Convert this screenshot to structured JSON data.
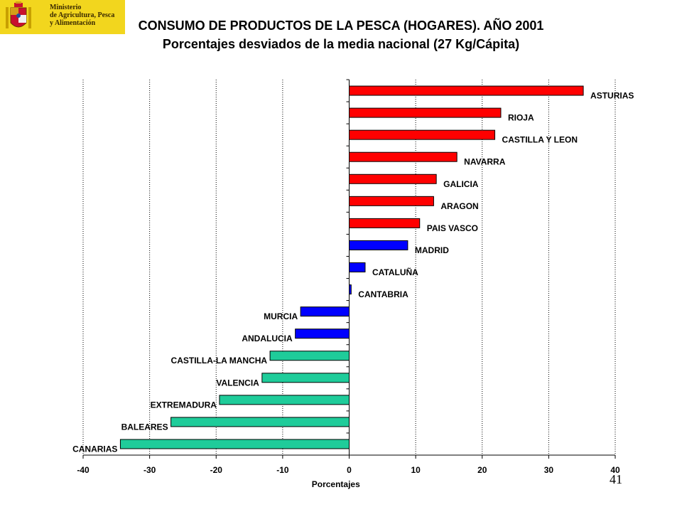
{
  "logo": {
    "lines": [
      "Ministerio",
      "de Agricultura, Pesca",
      "y Alimentación"
    ]
  },
  "page_number": "41",
  "colors": {
    "red": "#ff0000",
    "blue": "#0000ff",
    "green": "#1fcc9a"
  },
  "chart_data": {
    "type": "bar",
    "orientation": "horizontal",
    "title": "CONSUMO DE PRODUCTOS DE LA PESCA (HOGARES). AÑO 2001",
    "subtitle": "Porcentajes desviados de la media nacional (27 Kg/Cápita)",
    "xlabel": "Porcentajes",
    "ylabel": "",
    "xlim": [
      -40,
      40
    ],
    "xticks": [
      "-40",
      "-30",
      "-20",
      "-10",
      "0",
      "10",
      "20",
      "30",
      "40"
    ],
    "grid": "vertical-dotted",
    "categories": [
      "ASTURIAS",
      "RIOJA",
      "CASTILLA Y LEON",
      "NAVARRA",
      "GALICIA",
      "ARAGON",
      "PAIS VASCO",
      "MADRID",
      "CATALUÑA",
      "CANTABRIA",
      "MURCIA",
      "ANDALUCIA",
      "CASTILLA-LA MANCHA",
      "VALENCIA",
      "EXTREMADURA",
      "BALEARES",
      "CANARIAS"
    ],
    "values": [
      35.2,
      22.8,
      21.9,
      16.2,
      13.1,
      12.7,
      10.6,
      8.8,
      2.4,
      0.3,
      -7.3,
      -8.1,
      -11.9,
      -13.1,
      -19.5,
      -26.8,
      -34.4
    ],
    "bar_colors": [
      "red",
      "red",
      "red",
      "red",
      "red",
      "red",
      "red",
      "blue",
      "blue",
      "blue",
      "blue",
      "blue",
      "green",
      "green",
      "green",
      "green",
      "green"
    ]
  }
}
